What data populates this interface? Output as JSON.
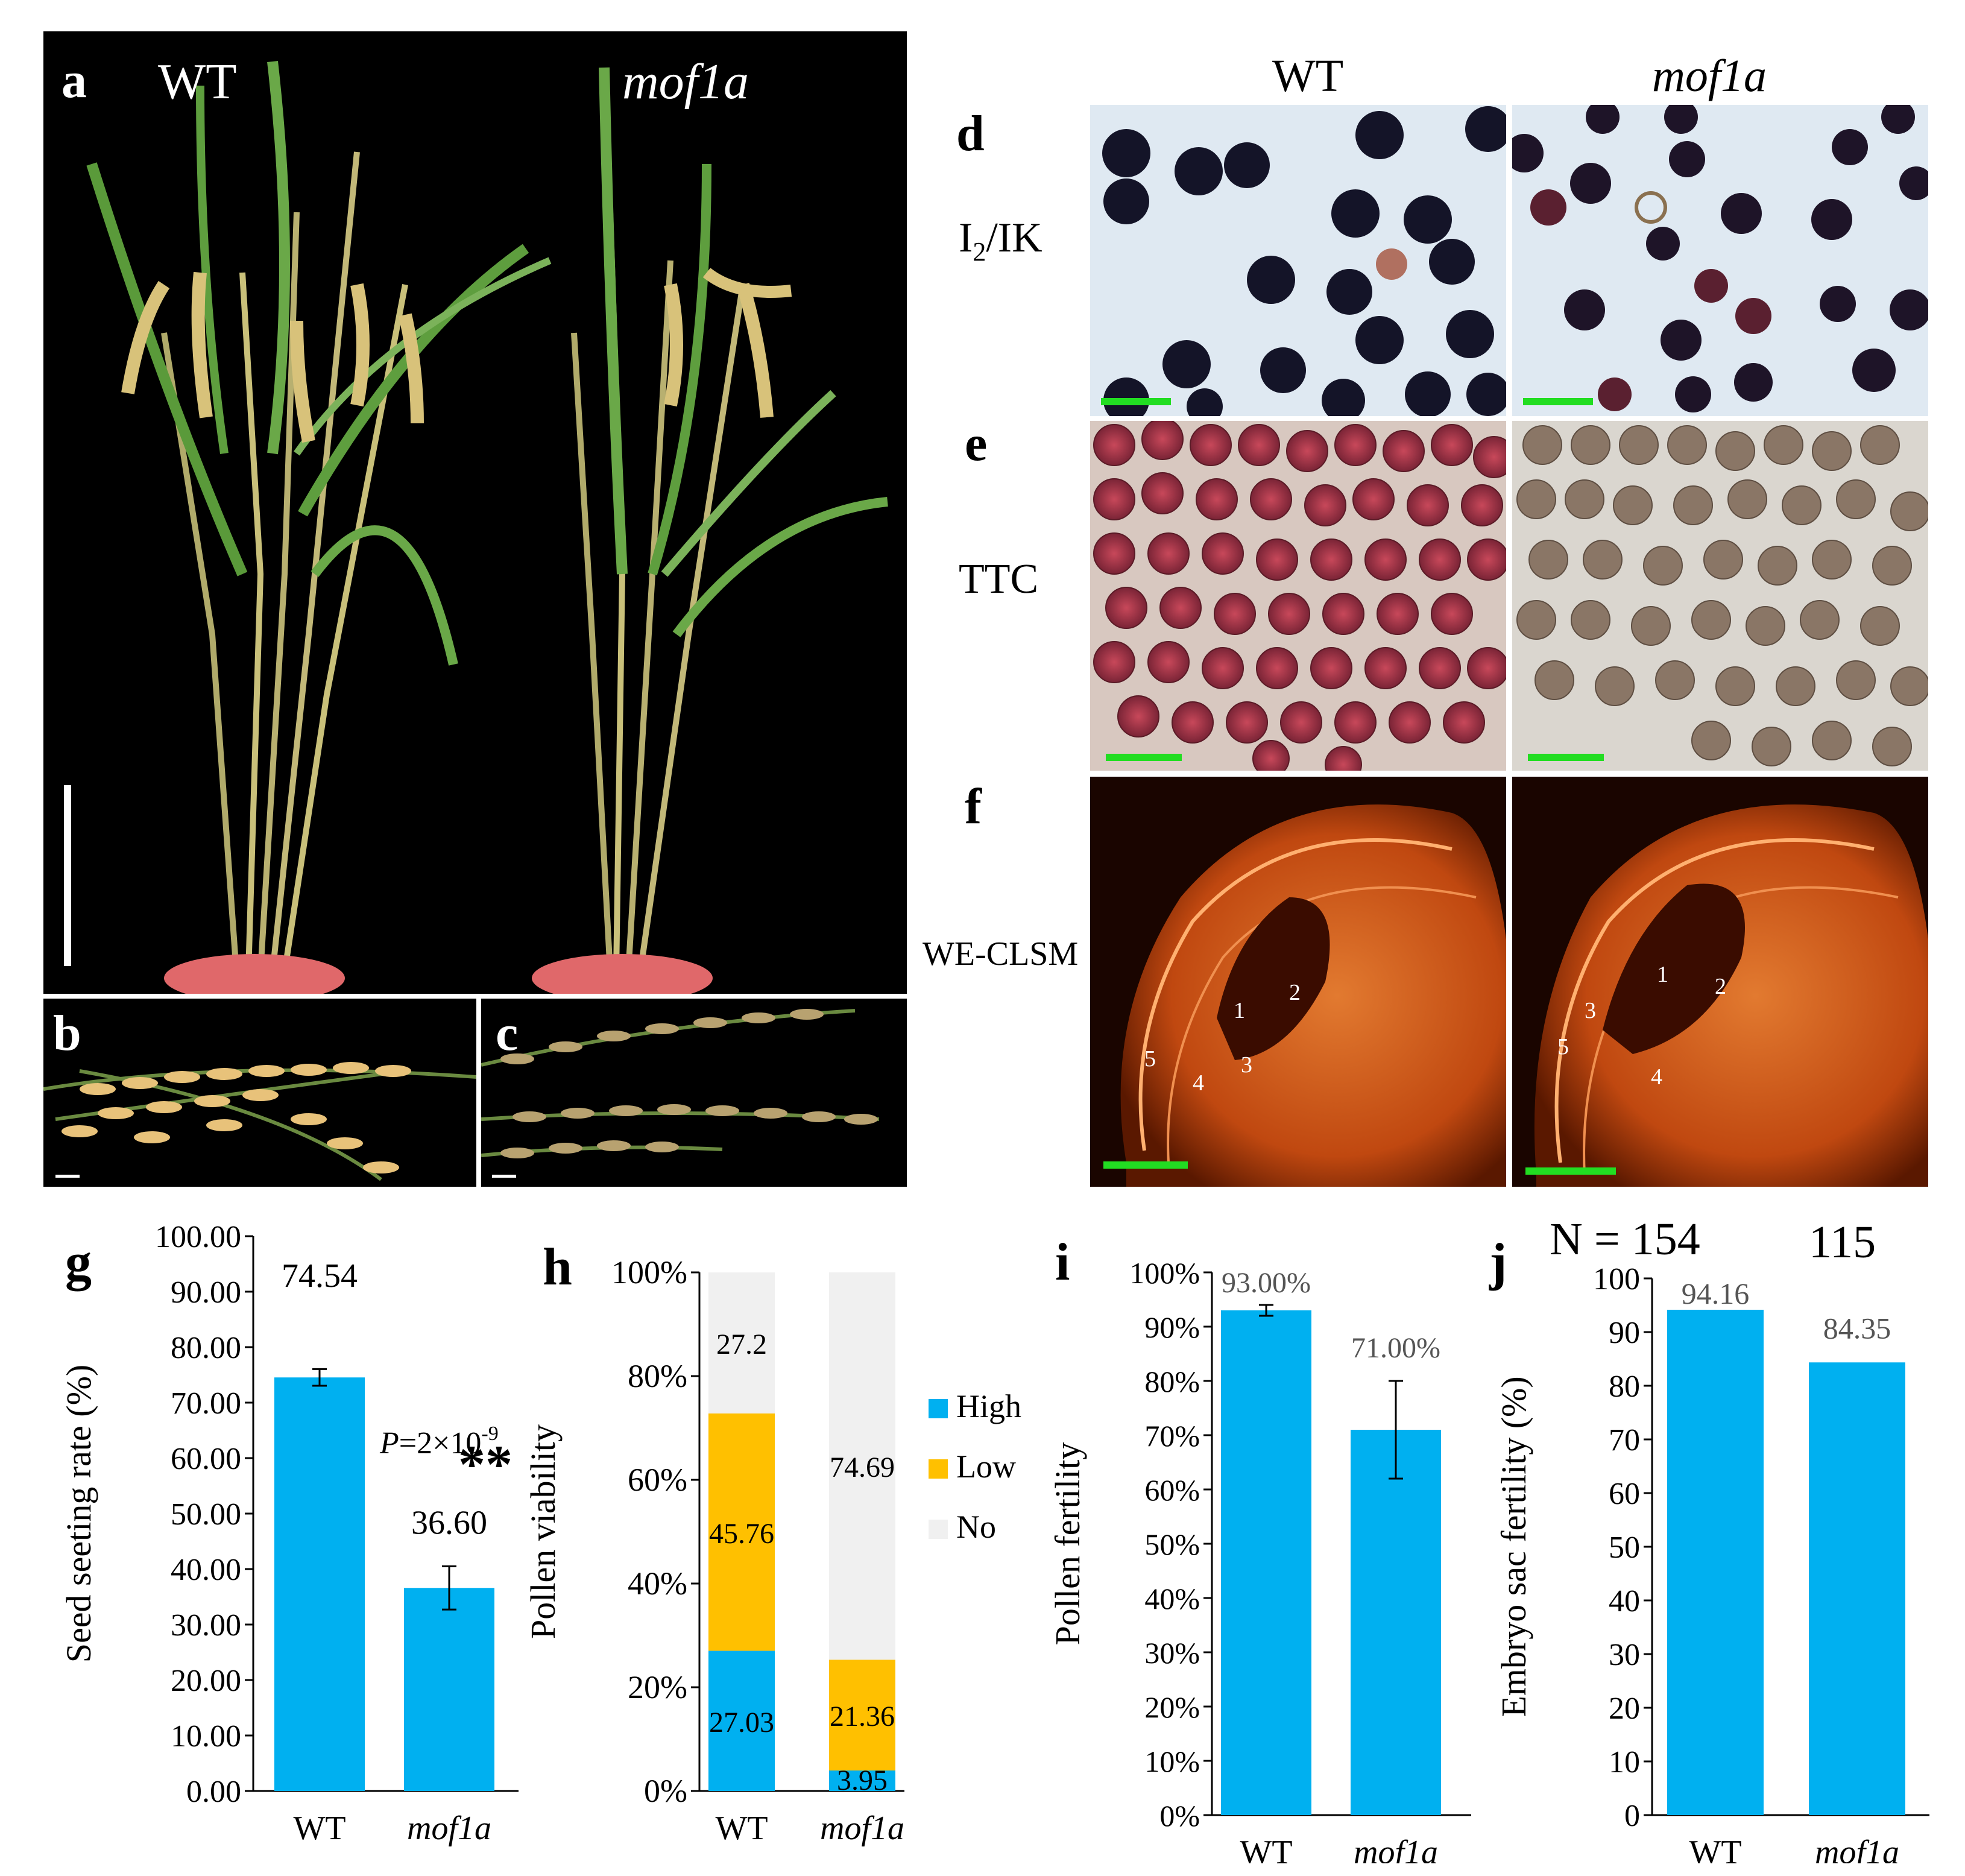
{
  "panels": {
    "a": {
      "letter": "a",
      "wt_label": "WT",
      "mutant_label": "mof1a"
    },
    "b": {
      "letter": "b"
    },
    "c": {
      "letter": "c"
    },
    "d": {
      "letter": "d",
      "stain_label_main": "I",
      "stain_label_sub": "2",
      "stain_label_rest": "/IK"
    },
    "e": {
      "letter": "e",
      "stain_label": "TTC"
    },
    "f": {
      "letter": "f",
      "stain_label": "WE-CLSM"
    },
    "g": {
      "letter": "g"
    },
    "h": {
      "letter": "h"
    },
    "i": {
      "letter": "i"
    },
    "j": {
      "letter": "j"
    }
  },
  "micro_columns": {
    "wt": "WT",
    "mutant": "mof1a"
  },
  "clsm_marks": [
    "1",
    "2",
    "3",
    "4",
    "5"
  ],
  "colors": {
    "blue": "#00B0F0",
    "yellow": "#FFC000",
    "grey": "#F0F0F0",
    "scalebar": "#22DD22"
  },
  "chart_data": [
    {
      "id": "g",
      "type": "bar",
      "categories": [
        "WT",
        "mof1a"
      ],
      "values": [
        74.54,
        36.6
      ],
      "errors": [
        1.5,
        3.9
      ],
      "value_labels": [
        "74.54",
        "36.60"
      ],
      "ylabel": "Seed seeting rate (%)",
      "ylim": [
        0,
        100
      ],
      "yticks": [
        "0.00",
        "10.00",
        "20.00",
        "30.00",
        "40.00",
        "50.00",
        "60.00",
        "70.00",
        "80.00",
        "90.00",
        "100.00"
      ],
      "p_value_prefix": "P",
      "p_value_text": "=2×10",
      "p_value_exp": "-9",
      "significance": "**"
    },
    {
      "id": "h",
      "type": "bar",
      "stacked": true,
      "categories": [
        "WT",
        "mof1a"
      ],
      "series": [
        {
          "name": "High",
          "values": [
            27.03,
            3.95
          ]
        },
        {
          "name": "Low",
          "values": [
            45.76,
            21.36
          ]
        },
        {
          "name": "No",
          "values": [
            27.2,
            74.69
          ]
        }
      ],
      "ylabel": "Pollen viability",
      "ylim": [
        0,
        100
      ],
      "yticks": [
        "0%",
        "20%",
        "40%",
        "60%",
        "80%",
        "100%"
      ]
    },
    {
      "id": "i",
      "type": "bar",
      "categories": [
        "WT",
        "mof1a"
      ],
      "values": [
        93.0,
        71.0
      ],
      "errors": [
        1.0,
        9.0
      ],
      "value_labels": [
        "93.00%",
        "71.00%"
      ],
      "ylabel": "Pollen fertility",
      "ylim": [
        0,
        100
      ],
      "yticks": [
        "0%",
        "10%",
        "20%",
        "30%",
        "40%",
        "50%",
        "60%",
        "70%",
        "80%",
        "90%",
        "100%"
      ]
    },
    {
      "id": "j",
      "type": "bar",
      "categories": [
        "WT",
        "mof1a"
      ],
      "values": [
        94.16,
        84.35
      ],
      "value_labels": [
        "94.16",
        "84.35"
      ],
      "ylabel": "Embryo sac fertility (%)",
      "ylim": [
        0,
        100
      ],
      "yticks": [
        "0",
        "10",
        "20",
        "30",
        "40",
        "50",
        "60",
        "70",
        "80",
        "90",
        "100"
      ],
      "n_label": "N = 154",
      "n_label_2": "115"
    }
  ]
}
